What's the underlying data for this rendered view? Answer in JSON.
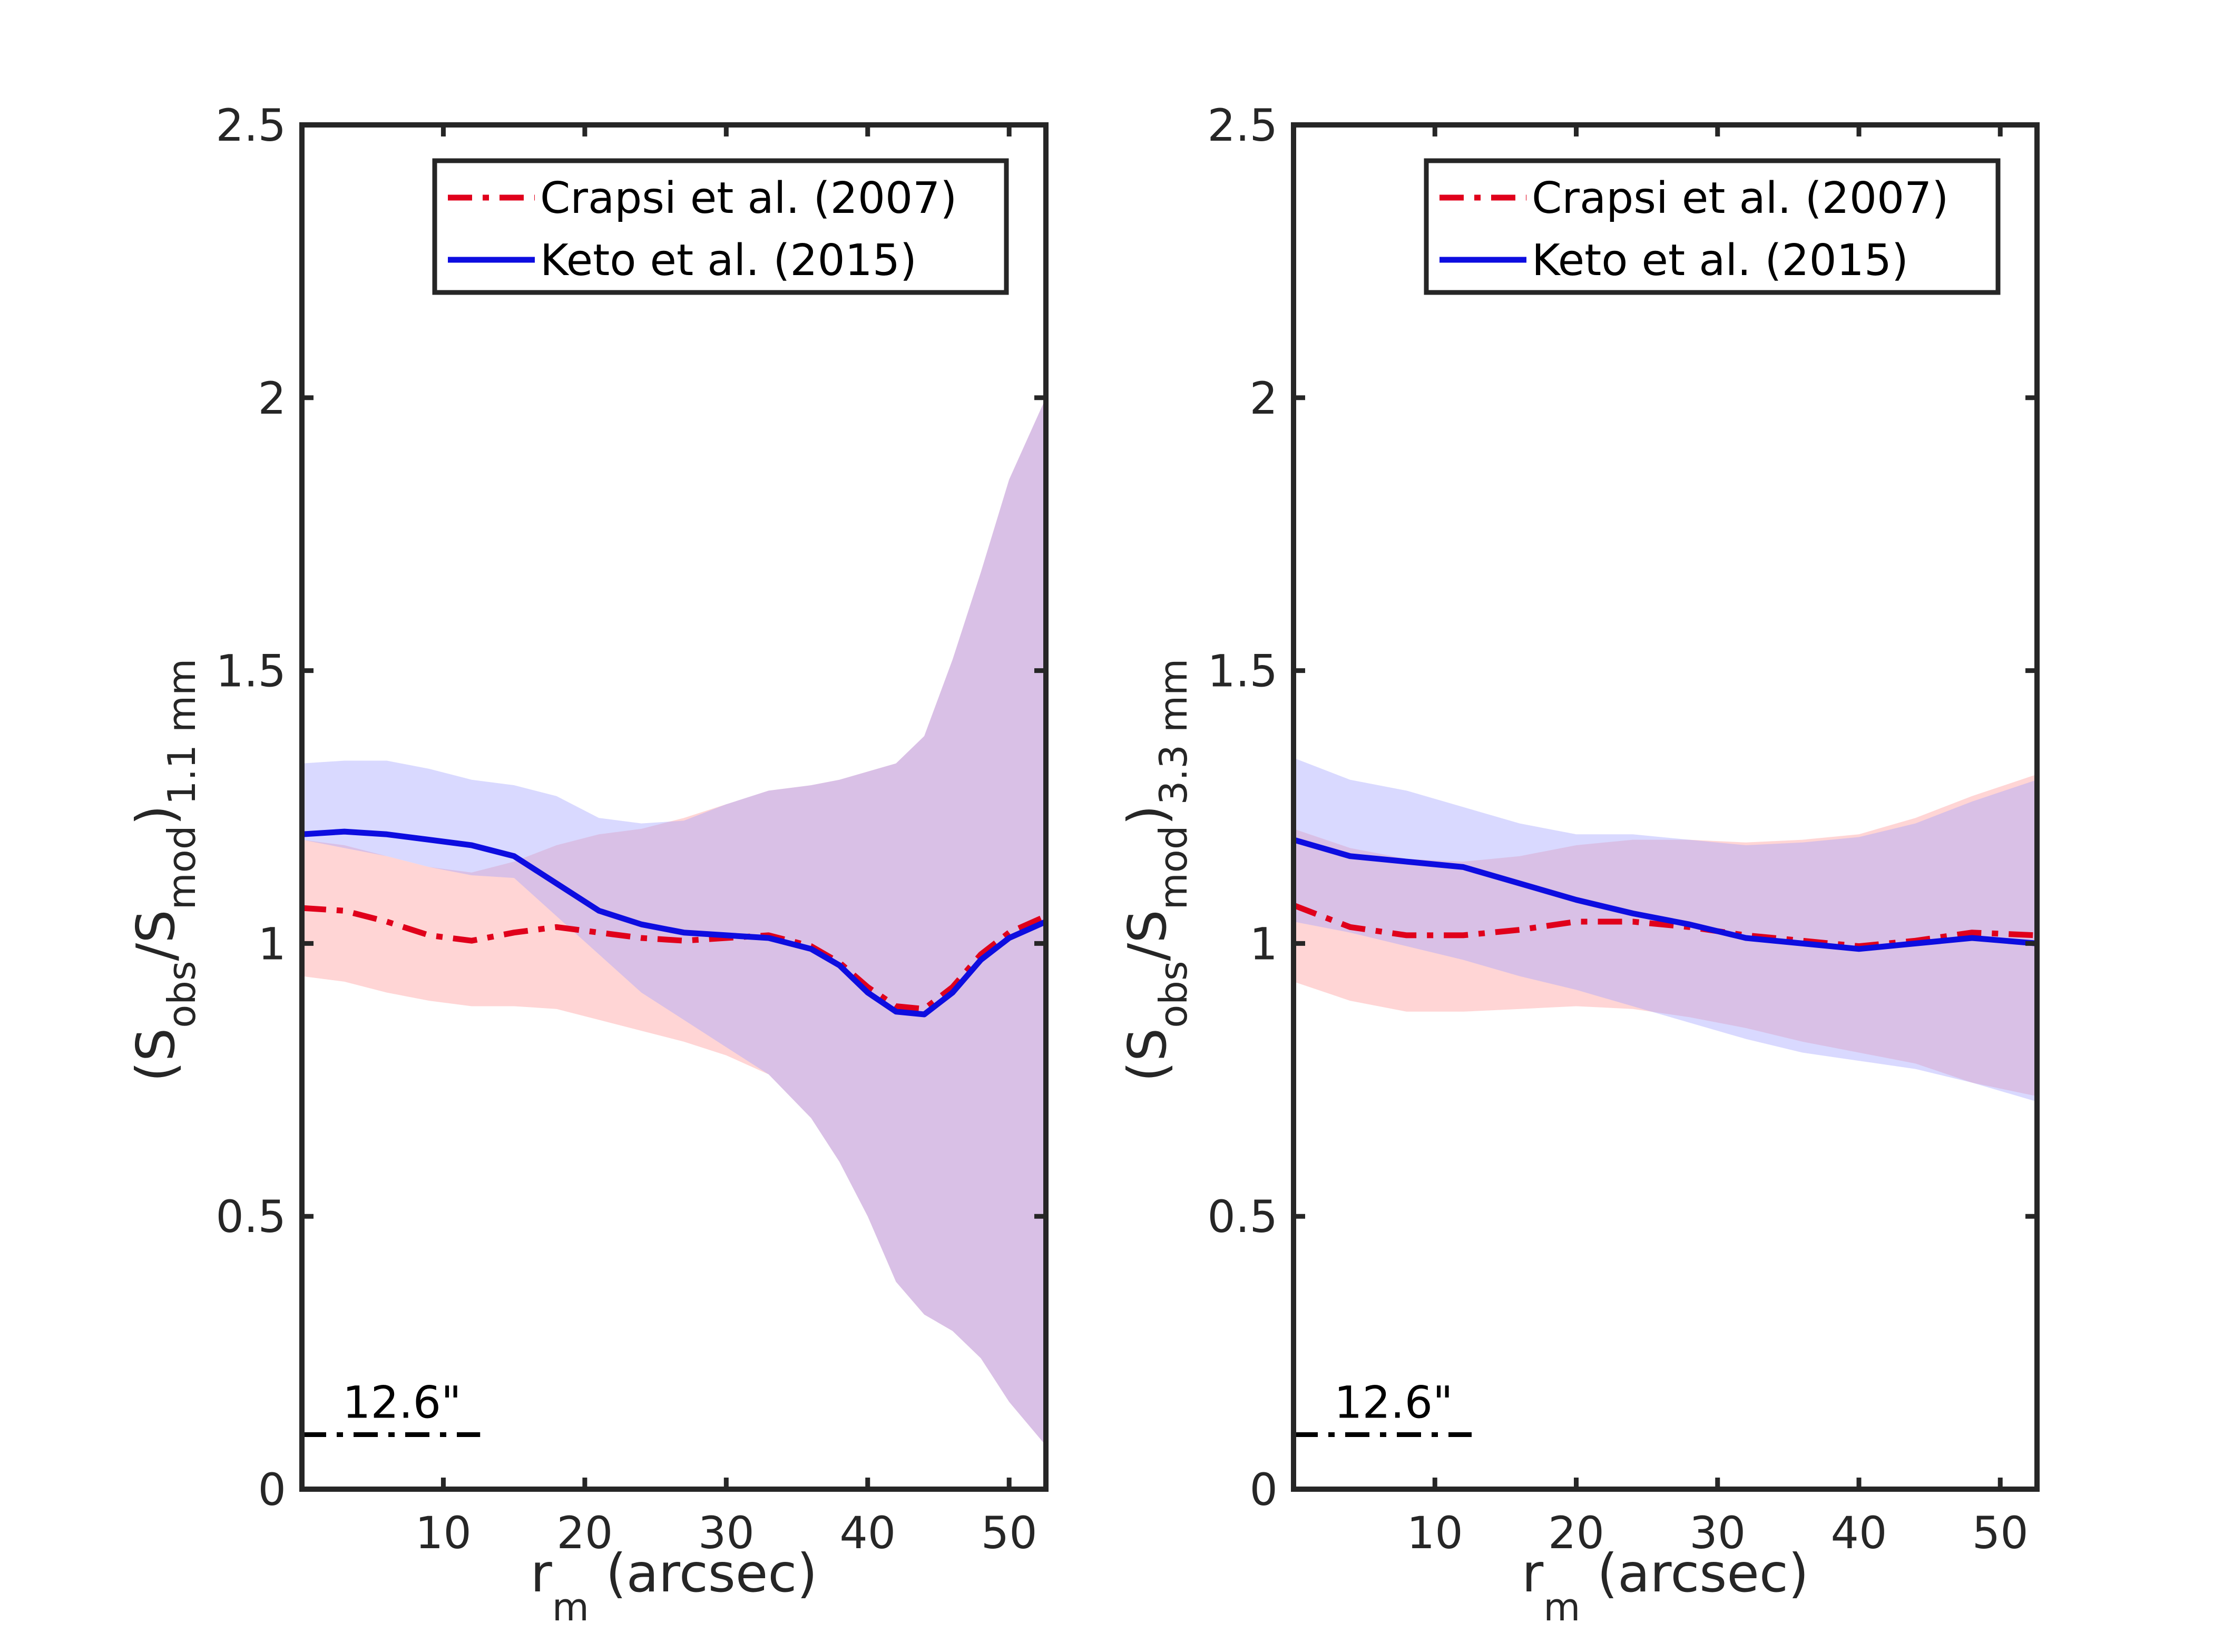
{
  "colors": {
    "crapsi": "#e0001b",
    "keto": "#0d0de0",
    "crapsi_band": "#ff9a9a",
    "keto_band": "#9f9fff",
    "axis": "#262626"
  },
  "chart_data": [
    {
      "type": "line",
      "xlabel": "r",
      "xlabel_sub": "m",
      "xlabel_rest": " (arcsec)",
      "ylabel_open": "(S",
      "ylabel_sub1": "obs",
      "ylabel_mid": "/S",
      "ylabel_sub2": "mod",
      "ylabel_close": ")",
      "ylabel_sub3": "1.1 mm",
      "xlim": [
        0,
        52.6
      ],
      "ylim": [
        0,
        2.5
      ],
      "x_ticks": [
        10,
        20,
        30,
        40,
        50
      ],
      "x_tick_labels": [
        "10",
        "20",
        "30",
        "40",
        "50"
      ],
      "y_ticks": [
        0,
        0.5,
        1,
        1.5,
        2,
        2.5
      ],
      "y_tick_labels": [
        "0",
        "0.5",
        "1",
        "1.5",
        "2",
        "2.5"
      ],
      "grid": false,
      "legend_position": "top-right",
      "series": [
        {
          "name": "Crapsi et al. (2007)",
          "style": "dash-dot",
          "color": "#e0001b",
          "x": [
            0,
            3,
            6,
            9,
            12,
            15,
            18,
            21,
            24,
            27,
            30,
            33,
            36,
            38,
            40,
            42,
            44,
            46,
            48,
            50,
            52.6
          ],
          "y": [
            1.065,
            1.06,
            1.04,
            1.015,
            1.005,
            1.02,
            1.03,
            1.02,
            1.01,
            1.005,
            1.01,
            1.015,
            0.995,
            0.965,
            0.92,
            0.885,
            0.88,
            0.92,
            0.98,
            1.02,
            1.05
          ],
          "band_upper": [
            1.19,
            1.18,
            1.16,
            1.14,
            1.13,
            1.15,
            1.18,
            1.2,
            1.21,
            1.23,
            1.255,
            1.28,
            1.29,
            1.3,
            1.315,
            1.33,
            1.38,
            1.52,
            1.68,
            1.85,
            2.0
          ],
          "band_lower": [
            0.94,
            0.93,
            0.91,
            0.895,
            0.885,
            0.885,
            0.88,
            0.86,
            0.84,
            0.82,
            0.795,
            0.76,
            0.68,
            0.6,
            0.5,
            0.38,
            0.32,
            0.29,
            0.24,
            0.16,
            0.08
          ]
        },
        {
          "name": "Keto et al. (2015)",
          "style": "solid",
          "color": "#0d0de0",
          "x": [
            0,
            3,
            6,
            9,
            12,
            15,
            18,
            21,
            24,
            27,
            30,
            33,
            36,
            38,
            40,
            42,
            44,
            46,
            48,
            50,
            52.6
          ],
          "y": [
            1.2,
            1.205,
            1.2,
            1.19,
            1.18,
            1.16,
            1.11,
            1.06,
            1.035,
            1.02,
            1.015,
            1.01,
            0.99,
            0.96,
            0.91,
            0.875,
            0.87,
            0.91,
            0.97,
            1.01,
            1.04
          ],
          "band_upper": [
            1.33,
            1.335,
            1.335,
            1.32,
            1.3,
            1.29,
            1.27,
            1.23,
            1.22,
            1.225,
            1.255,
            1.28,
            1.29,
            1.3,
            1.315,
            1.33,
            1.38,
            1.52,
            1.68,
            1.85,
            2.0
          ],
          "band_lower": [
            1.19,
            1.175,
            1.16,
            1.14,
            1.125,
            1.12,
            1.05,
            0.98,
            0.91,
            0.86,
            0.81,
            0.76,
            0.68,
            0.6,
            0.5,
            0.38,
            0.32,
            0.29,
            0.24,
            0.16,
            0.08
          ]
        }
      ],
      "annotation": {
        "text": "12.6\"",
        "bar_x": [
          0,
          12.6
        ],
        "bar_y": 0.1
      }
    },
    {
      "type": "line",
      "xlabel": "r",
      "xlabel_sub": "m",
      "xlabel_rest": " (arcsec)",
      "ylabel_open": "(S",
      "ylabel_sub1": "obs",
      "ylabel_mid": "/S",
      "ylabel_sub2": "mod",
      "ylabel_close": ")",
      "ylabel_sub3": "3.3 mm",
      "xlim": [
        0,
        52.6
      ],
      "ylim": [
        0,
        2.5
      ],
      "x_ticks": [
        10,
        20,
        30,
        40,
        50
      ],
      "x_tick_labels": [
        "10",
        "20",
        "30",
        "40",
        "50"
      ],
      "y_ticks": [
        0,
        0.5,
        1,
        1.5,
        2,
        2.5
      ],
      "y_tick_labels": [
        "0",
        "0.5",
        "1",
        "1.5",
        "2",
        "2.5"
      ],
      "grid": false,
      "legend_position": "top-right",
      "series": [
        {
          "name": "Crapsi et al. (2007)",
          "style": "dash-dot",
          "color": "#e0001b",
          "x": [
            0,
            4,
            8,
            12,
            16,
            20,
            24,
            28,
            32,
            36,
            40,
            44,
            48,
            52.6
          ],
          "y": [
            1.07,
            1.03,
            1.015,
            1.015,
            1.025,
            1.04,
            1.04,
            1.03,
            1.015,
            1.005,
            0.995,
            1.005,
            1.02,
            1.015
          ],
          "band_upper": [
            1.21,
            1.175,
            1.155,
            1.15,
            1.16,
            1.18,
            1.19,
            1.19,
            1.185,
            1.19,
            1.2,
            1.23,
            1.27,
            1.31
          ],
          "band_lower": [
            0.93,
            0.895,
            0.875,
            0.875,
            0.88,
            0.885,
            0.88,
            0.865,
            0.845,
            0.82,
            0.8,
            0.78,
            0.745,
            0.72
          ]
        },
        {
          "name": "Keto et al. (2015)",
          "style": "solid",
          "color": "#0d0de0",
          "x": [
            0,
            4,
            8,
            12,
            16,
            20,
            24,
            28,
            32,
            36,
            40,
            44,
            48,
            52.6
          ],
          "y": [
            1.19,
            1.16,
            1.15,
            1.14,
            1.11,
            1.08,
            1.055,
            1.035,
            1.01,
            1.0,
            0.99,
            1.0,
            1.01,
            1.0
          ],
          "band_upper": [
            1.34,
            1.3,
            1.28,
            1.25,
            1.22,
            1.2,
            1.2,
            1.19,
            1.18,
            1.185,
            1.195,
            1.22,
            1.26,
            1.3
          ],
          "band_lower": [
            1.04,
            1.02,
            0.995,
            0.97,
            0.94,
            0.915,
            0.885,
            0.855,
            0.825,
            0.8,
            0.785,
            0.77,
            0.745,
            0.71
          ]
        }
      ],
      "annotation": {
        "text": "12.6\"",
        "bar_x": [
          0,
          12.6
        ],
        "bar_y": 0.1
      }
    }
  ]
}
